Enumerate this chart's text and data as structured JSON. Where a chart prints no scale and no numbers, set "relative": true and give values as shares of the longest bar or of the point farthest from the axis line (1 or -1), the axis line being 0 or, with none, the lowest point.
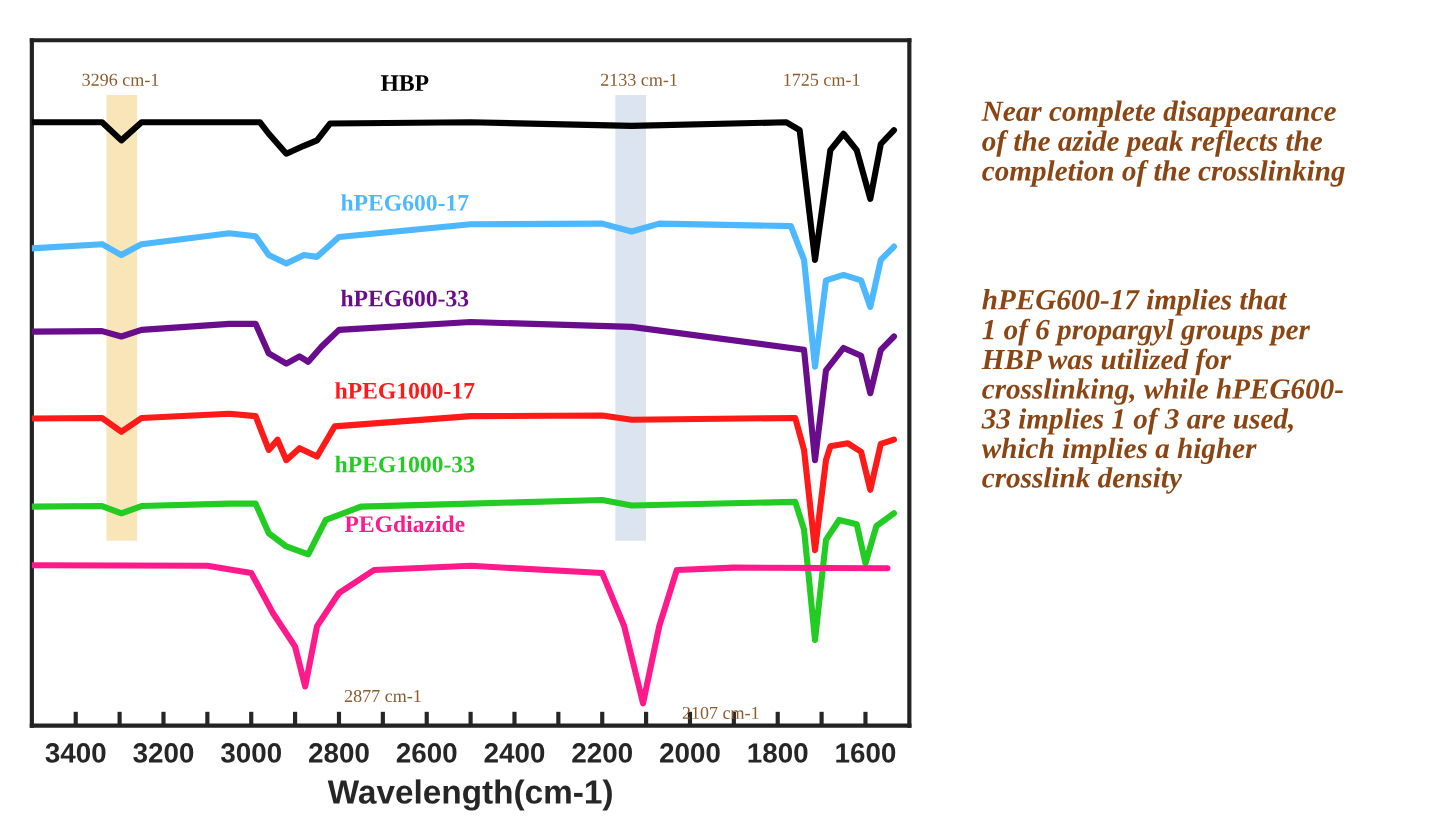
{
  "chart_data": {
    "type": "line",
    "relative": true,
    "xlabel": "Wavelength(cm-1)",
    "xlim": [
      3500,
      1500
    ],
    "xticks": [
      3400,
      {
        "value": 3300,
        "label": null
      },
      3200,
      {
        "value": 3100,
        "label": null
      },
      3000,
      {
        "value": 2900,
        "label": null
      },
      2800,
      {
        "value": 2700,
        "label": null
      },
      2600,
      {
        "value": 2500,
        "label": null
      },
      2400,
      {
        "value": 2300,
        "label": null
      },
      2200,
      {
        "value": 2100,
        "label": null
      },
      2000,
      {
        "value": 1900,
        "label": null
      },
      1800,
      {
        "value": 1700,
        "label": null
      },
      1600
    ],
    "tick_labels": "x",
    "grid": false,
    "legend": false,
    "line_style": "solid",
    "marker": "none",
    "series": [
      {
        "name": "HBP",
        "color": "#000000",
        "x": [
          3500,
          3340,
          3296,
          3250,
          3100,
          2980,
          2960,
          2920,
          2880,
          2850,
          2820,
          2500,
          2133,
          1780,
          1750,
          1715,
          1680,
          1650,
          1620,
          1589,
          1565,
          1535
        ],
        "values": [
          1.0,
          1.0,
          0.97,
          1.0,
          1.0,
          1.0,
          0.981,
          0.948,
          0.961,
          0.97,
          0.998,
          1.0,
          0.994,
          1.0,
          0.987,
          0.772,
          0.954,
          0.981,
          0.954,
          0.873,
          0.964,
          0.987
        ]
      },
      {
        "name": "hPEG600-17",
        "color": "#4db8ff",
        "x": [
          3500,
          3340,
          3296,
          3250,
          3050,
          2990,
          2960,
          2920,
          2880,
          2850,
          2800,
          2500,
          2200,
          2133,
          2070,
          1770,
          1740,
          1715,
          1690,
          1650,
          1610,
          1589,
          1565,
          1535
        ],
        "values": [
          0.791,
          0.798,
          0.78,
          0.798,
          0.816,
          0.811,
          0.78,
          0.766,
          0.78,
          0.777,
          0.81,
          0.831,
          0.832,
          0.819,
          0.832,
          0.828,
          0.772,
          0.595,
          0.738,
          0.747,
          0.738,
          0.694,
          0.772,
          0.794
        ]
      },
      {
        "name": "hPEG600-33",
        "color": "#6a0d8c",
        "x": [
          3500,
          3340,
          3296,
          3250,
          3050,
          2990,
          2960,
          2920,
          2890,
          2870,
          2840,
          2800,
          2500,
          2133,
          1740,
          1715,
          1690,
          1650,
          1610,
          1589,
          1565,
          1535
        ],
        "values": [
          0.653,
          0.654,
          0.645,
          0.656,
          0.666,
          0.666,
          0.617,
          0.6,
          0.612,
          0.603,
          0.628,
          0.656,
          0.669,
          0.661,
          0.623,
          0.44,
          0.589,
          0.626,
          0.613,
          0.551,
          0.623,
          0.645
        ]
      },
      {
        "name": "hPEG1000-17",
        "color": "#ff1a1a",
        "x": [
          3500,
          3340,
          3296,
          3250,
          3050,
          2990,
          2960,
          2940,
          2920,
          2890,
          2850,
          2810,
          2500,
          2200,
          2133,
          1760,
          1740,
          1715,
          1690,
          1680,
          1640,
          1610,
          1589,
          1565,
          1535
        ],
        "values": [
          0.509,
          0.51,
          0.487,
          0.51,
          0.517,
          0.513,
          0.457,
          0.474,
          0.44,
          0.46,
          0.446,
          0.496,
          0.513,
          0.514,
          0.507,
          0.51,
          0.457,
          0.291,
          0.44,
          0.463,
          0.468,
          0.454,
          0.391,
          0.467,
          0.474
        ]
      },
      {
        "name": "hPEG1000-33",
        "color": "#22cc22",
        "x": [
          3500,
          3340,
          3296,
          3250,
          3050,
          2990,
          2960,
          2920,
          2870,
          2830,
          2750,
          2500,
          2200,
          2133,
          1760,
          1740,
          1715,
          1690,
          1660,
          1620,
          1600,
          1575,
          1535
        ],
        "values": [
          0.363,
          0.364,
          0.352,
          0.364,
          0.368,
          0.368,
          0.319,
          0.297,
          0.284,
          0.341,
          0.363,
          0.368,
          0.374,
          0.365,
          0.371,
          0.325,
          0.142,
          0.308,
          0.341,
          0.334,
          0.269,
          0.331,
          0.352
        ]
      },
      {
        "name": "PEGdiazide",
        "color": "#ff1a8c",
        "x": [
          3500,
          3100,
          3000,
          2950,
          2900,
          2877,
          2850,
          2800,
          2720,
          2500,
          2200,
          2150,
          2107,
          2070,
          2030,
          1900,
          1550
        ],
        "values": [
          0.266,
          0.265,
          0.253,
          0.186,
          0.131,
          0.065,
          0.165,
          0.22,
          0.258,
          0.265,
          0.253,
          0.165,
          0.037,
          0.165,
          0.258,
          0.262,
          0.261
        ]
      }
    ],
    "bands": [
      {
        "axis": "x",
        "from": 3330,
        "to": 3260,
        "color": "#f3d58a"
      },
      {
        "axis": "x",
        "from": 2170,
        "to": 2100,
        "color": "#c5d2e6"
      }
    ],
    "annotations": [
      "3296 cm-1",
      "2133 cm-1",
      "1725 cm-1",
      {
        "text": "2877 cm-1",
        "x": 2877,
        "y": 0.065
      },
      {
        "text": "2107 cm-1",
        "x": 2107,
        "y": 0.037
      },
      "Near complete disappearance\nof the azide peak reflects the\ncompletion of the crosslinking",
      "hPEG600-17 implies that\n1 of 6 propargyl groups per\nHBP was utilized for\ncrosslinking, while hPEG600-\n33 implies 1 of 3 are used,\nwhich implies a higher\ncrosslink density"
    ]
  }
}
